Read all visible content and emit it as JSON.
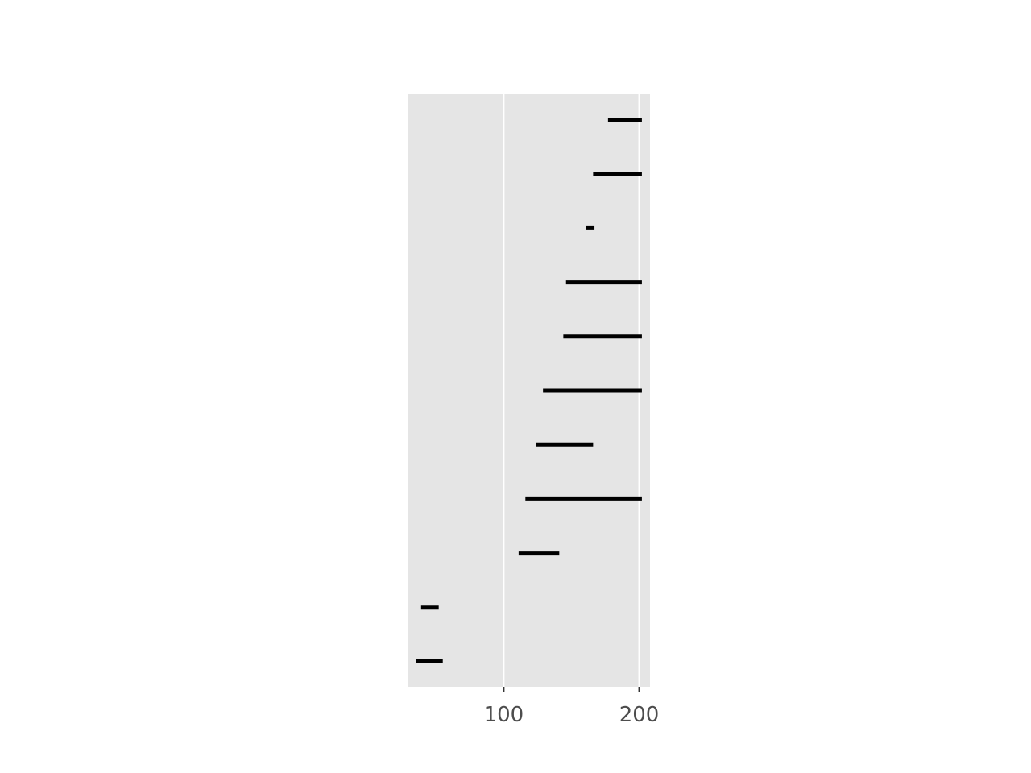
{
  "chart_data": {
    "type": "range-bar",
    "title": "",
    "xlabel": "",
    "ylabel": "",
    "xlim": [
      29,
      208
    ],
    "x_ticks": [
      100,
      200
    ],
    "x_tick_labels": [
      "100",
      "200"
    ],
    "grid": true,
    "background": "#e5e5e5",
    "grid_color": "#ffffff",
    "bar_color": "#000000",
    "segments": [
      {
        "start": 35,
        "end": 55
      },
      {
        "start": 39,
        "end": 52
      },
      {
        "start": 111,
        "end": 141
      },
      {
        "start": 116,
        "end": 202
      },
      {
        "start": 124,
        "end": 166
      },
      {
        "start": 129,
        "end": 202
      },
      {
        "start": 144,
        "end": 202
      },
      {
        "start": 146,
        "end": 202
      },
      {
        "start": 161,
        "end": 167
      },
      {
        "start": 166,
        "end": 202
      },
      {
        "start": 177,
        "end": 202
      }
    ]
  }
}
